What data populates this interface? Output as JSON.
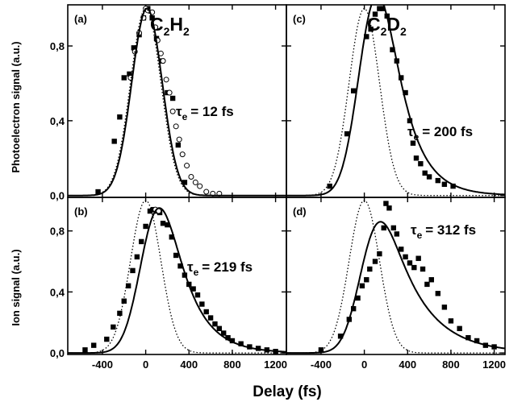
{
  "chart_data": [
    {
      "type": "scatter",
      "panel": "(a)",
      "title": "C2H2",
      "annotation": "= 12 fs",
      "annotation_symbol": "τ",
      "annotation_subscript": "e",
      "ylabel": "Photoelectron signal (a.u.)",
      "xlim": [
        -720,
        1300
      ],
      "ylim": [
        -0.01,
        1.02
      ],
      "series": [
        {
          "marker": "square",
          "x": [
            -440,
            -290,
            -240,
            -200,
            -150,
            -110,
            -60,
            -20,
            20,
            60,
            100,
            150,
            200,
            250,
            300,
            360
          ],
          "y": [
            0.02,
            0.29,
            0.42,
            0.63,
            0.65,
            0.79,
            0.86,
            0.95,
            1.0,
            0.95,
            0.84,
            0.72,
            0.55,
            0.52,
            0.27,
            0.07
          ]
        },
        {
          "marker": "circle",
          "x": [
            -140,
            -100,
            -60,
            -20,
            0,
            20,
            60,
            90,
            110,
            140,
            160,
            190,
            220,
            250,
            280,
            310,
            340,
            380,
            420,
            460,
            500,
            560,
            620,
            680
          ],
          "y": [
            0.63,
            0.77,
            0.87,
            0.95,
            1.0,
            0.99,
            0.98,
            0.9,
            0.83,
            0.76,
            0.72,
            0.62,
            0.55,
            0.45,
            0.37,
            0.3,
            0.22,
            0.16,
            0.1,
            0.07,
            0.05,
            0.02,
            0.01,
            0.01
          ]
        },
        {
          "style": "dotted",
          "center": 0,
          "fwhm": 330,
          "amplitude": 1.0
        },
        {
          "style": "solid",
          "center": 0,
          "fwhm": 330,
          "tau": 12,
          "amplitude": 1.0
        }
      ]
    },
    {
      "type": "scatter",
      "panel": "(c)",
      "title": "C2D2",
      "annotation": "= 200 fs",
      "annotation_symbol": "τ",
      "annotation_subscript": "e",
      "xlim": [
        -720,
        1300
      ],
      "ylim": [
        -0.01,
        1.02
      ],
      "series": [
        {
          "marker": "square",
          "x": [
            -320,
            -160,
            -100,
            20,
            60,
            100,
            140,
            170,
            210,
            260,
            300,
            340,
            380,
            420,
            450,
            480,
            520,
            560,
            600,
            680,
            740,
            820
          ],
          "y": [
            0.05,
            0.33,
            0.56,
            0.85,
            0.89,
            0.97,
            1.0,
            1.0,
            0.96,
            0.78,
            0.72,
            0.63,
            0.55,
            0.4,
            0.28,
            0.2,
            0.17,
            0.12,
            0.1,
            0.08,
            0.06,
            0.05
          ]
        },
        {
          "style": "dotted",
          "center": 0,
          "fwhm": 330,
          "amplitude": 1.0
        },
        {
          "style": "solid",
          "center": 0,
          "fwhm": 330,
          "tau": 200,
          "amplitude": 1.07
        }
      ]
    },
    {
      "type": "scatter",
      "panel": "(b)",
      "annotation": "= 219 fs",
      "annotation_symbol": "τ",
      "annotation_subscript": "e",
      "ylabel": "Ion signal (a.u.)",
      "xlabel": "Delay (fs)",
      "xticks": [
        -400,
        0,
        400,
        800,
        1200
      ],
      "xlim": [
        -720,
        1300
      ],
      "ylim": [
        -0.01,
        1.02
      ],
      "series": [
        {
          "marker": "square",
          "x": [
            -560,
            -480,
            -360,
            -300,
            -240,
            -200,
            -160,
            -120,
            -80,
            -40,
            0,
            40,
            70,
            100,
            130,
            160,
            200,
            240,
            280,
            320,
            360,
            400,
            440,
            480,
            520,
            560,
            600,
            640,
            680,
            720,
            760,
            800,
            880,
            960,
            1040,
            1120,
            1200
          ],
          "y": [
            0.02,
            0.05,
            0.09,
            0.17,
            0.26,
            0.34,
            0.44,
            0.54,
            0.63,
            0.73,
            0.83,
            0.93,
            0.94,
            0.93,
            0.92,
            0.85,
            0.84,
            0.76,
            0.64,
            0.57,
            0.51,
            0.45,
            0.42,
            0.38,
            0.32,
            0.27,
            0.23,
            0.19,
            0.16,
            0.13,
            0.1,
            0.08,
            0.06,
            0.04,
            0.03,
            0.02,
            0.01
          ]
        },
        {
          "marker": "circle",
          "x": [
            90,
            120
          ],
          "y": [
            0.94,
            0.93
          ]
        },
        {
          "style": "dotted",
          "center": 0,
          "fwhm": 330,
          "amplitude": 1.0
        },
        {
          "style": "solid",
          "center": 0,
          "fwhm": 330,
          "tau": 219,
          "amplitude": 0.95
        }
      ]
    },
    {
      "type": "scatter",
      "panel": "(d)",
      "annotation": "= 312 fs",
      "annotation_symbol": "τ",
      "annotation_subscript": "e",
      "xticks": [
        -400,
        0,
        400,
        800,
        1200
      ],
      "xlim": [
        -720,
        1300
      ],
      "ylim": [
        -0.01,
        1.02
      ],
      "series": [
        {
          "marker": "square",
          "x": [
            -400,
            -220,
            -140,
            -100,
            -60,
            -20,
            20,
            50,
            100,
            140,
            180,
            200,
            230,
            270,
            300,
            340,
            380,
            420,
            460,
            500,
            540,
            580,
            620,
            680,
            740,
            800,
            880,
            960,
            1040,
            1120,
            1200
          ],
          "y": [
            0.02,
            0.11,
            0.22,
            0.29,
            0.36,
            0.44,
            0.48,
            0.55,
            0.6,
            0.65,
            0.82,
            0.98,
            0.95,
            0.82,
            0.78,
            0.68,
            0.63,
            0.59,
            0.56,
            0.62,
            0.55,
            0.45,
            0.48,
            0.39,
            0.3,
            0.21,
            0.16,
            0.1,
            0.08,
            0.05,
            0.04
          ]
        },
        {
          "style": "dotted",
          "center": 0,
          "fwhm": 330,
          "amplitude": 1.0
        },
        {
          "style": "solid",
          "center": 0,
          "fwhm": 330,
          "tau": 312,
          "amplitude": 0.86
        }
      ]
    }
  ],
  "axes_text": {
    "ytick_labels": [
      "0,0",
      "0,4",
      "0,8"
    ],
    "xtick_labels": [
      "-400",
      "0",
      "400",
      "800",
      "1200"
    ],
    "xlabel": "Delay (fs)",
    "ylabel_top": "Photoelectron signal (a.u.)",
    "ylabel_bottom": "Ion signal (a.u.)"
  },
  "titles": {
    "left": {
      "main": "C",
      "sub1": "2",
      "mid": "H",
      "sub2": "2"
    },
    "right": {
      "main": "C",
      "sub1": "2",
      "mid": "D",
      "sub2": "2"
    }
  }
}
